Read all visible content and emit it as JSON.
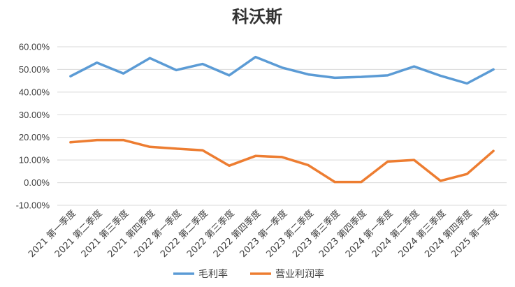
{
  "chart_data": {
    "type": "line",
    "title": "科沃斯",
    "xlabel": "",
    "ylabel": "",
    "ylim": [
      -10,
      60
    ],
    "y_ticks": [
      -10,
      0,
      10,
      20,
      30,
      40,
      50,
      60
    ],
    "y_tick_format": "percent_2dp",
    "grid": "horizontal",
    "legend_position": "bottom",
    "categories": [
      "2021 第一季度",
      "2021 第二季度",
      "2021 第三季度",
      "2021 第四季度",
      "2022 第一季度",
      "2022 第二季度",
      "2022 第三季度",
      "2022 第四季度",
      "2023 第一季度",
      "2023 第二季度",
      "2023 第三季度",
      "2023 第四季度",
      "2024 第一季度",
      "2024 第二季度",
      "2024 第三季度",
      "2024 第四季度",
      "2025 第一季度"
    ],
    "series": [
      {
        "name": "毛利率",
        "color": "#5b9bd5",
        "values": [
          47.0,
          53.0,
          48.2,
          55.0,
          49.7,
          52.4,
          47.4,
          55.5,
          50.8,
          47.8,
          46.3,
          46.7,
          47.4,
          51.3,
          47.2,
          43.8,
          50.0
        ]
      },
      {
        "name": "营业利润率",
        "color": "#ed7d31",
        "values": [
          17.8,
          18.8,
          18.8,
          15.8,
          15.0,
          14.3,
          7.5,
          11.8,
          11.3,
          7.7,
          0.3,
          0.3,
          9.3,
          10.0,
          0.8,
          3.8,
          14.0
        ]
      }
    ]
  }
}
